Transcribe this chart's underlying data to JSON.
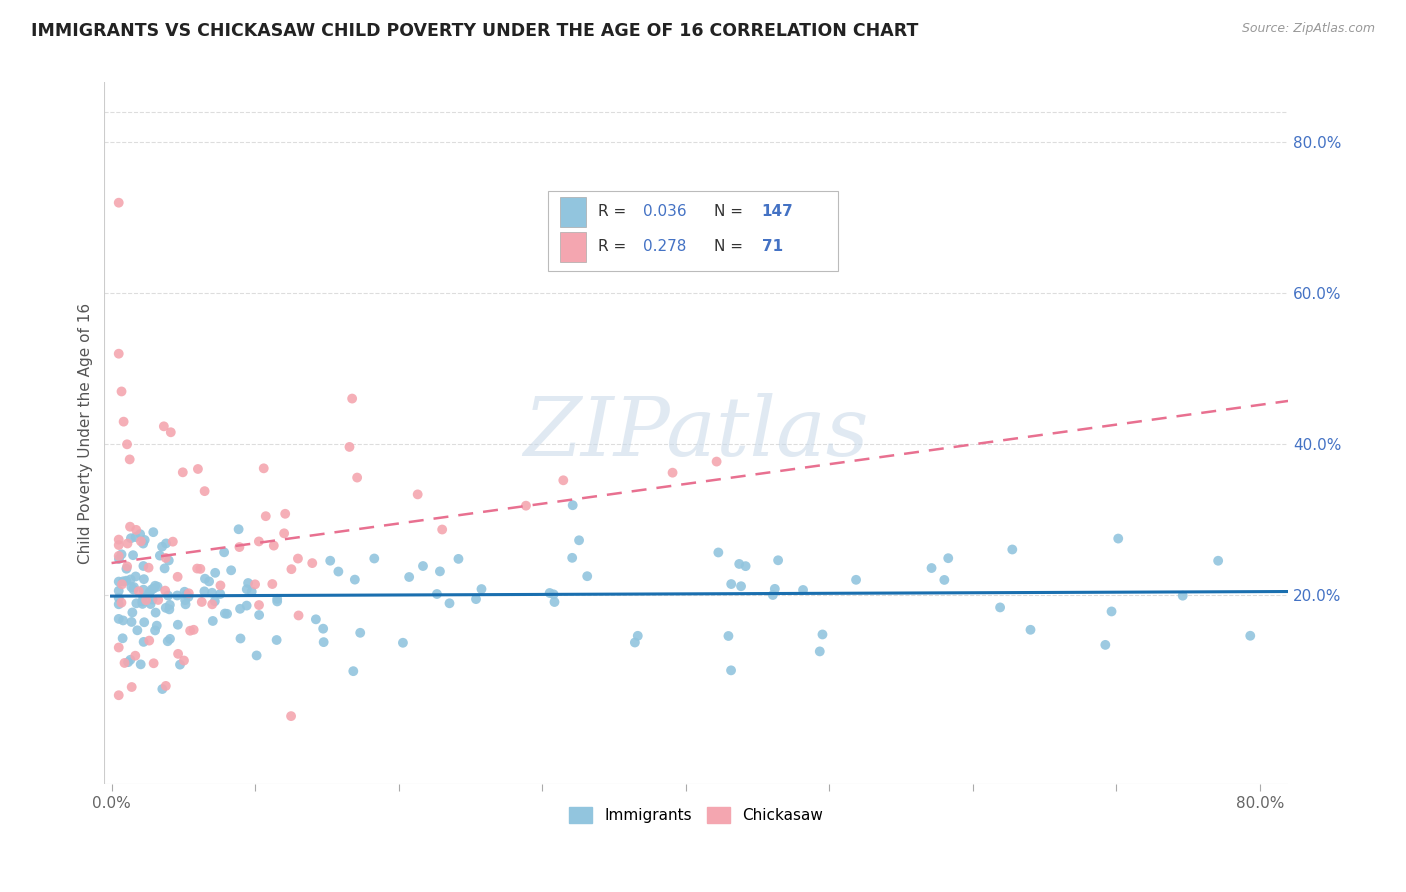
{
  "title": "IMMIGRANTS VS CHICKASAW CHILD POVERTY UNDER THE AGE OF 16 CORRELATION CHART",
  "source": "Source: ZipAtlas.com",
  "ylabel": "Child Poverty Under the Age of 16",
  "xlim": [
    -0.005,
    0.82
  ],
  "ylim": [
    -0.05,
    0.88
  ],
  "x_ticks": [
    0.0,
    0.1,
    0.2,
    0.3,
    0.4,
    0.5,
    0.6,
    0.7,
    0.8
  ],
  "x_tick_labels": [
    "0.0%",
    "",
    "",
    "",
    "",
    "",
    "",
    "",
    "80.0%"
  ],
  "y_ticks": [
    0.2,
    0.4,
    0.6,
    0.8
  ],
  "y_tick_labels": [
    "20.0%",
    "40.0%",
    "60.0%",
    "80.0%"
  ],
  "immigrants_R": 0.036,
  "immigrants_N": 147,
  "chickasaw_R": 0.278,
  "chickasaw_N": 71,
  "immigrants_color": "#92c5de",
  "chickasaw_color": "#f4a6b0",
  "immigrants_line_color": "#1a6faf",
  "chickasaw_line_color": "#e87090",
  "watermark_text": "ZIPatlas",
  "watermark_color": "#c8d8e8",
  "background_color": "#ffffff",
  "grid_color": "#dddddd",
  "tick_color": "#666666",
  "title_color": "#222222",
  "source_color": "#999999",
  "legend_text_color": "#333333",
  "legend_value_color": "#4472c4"
}
